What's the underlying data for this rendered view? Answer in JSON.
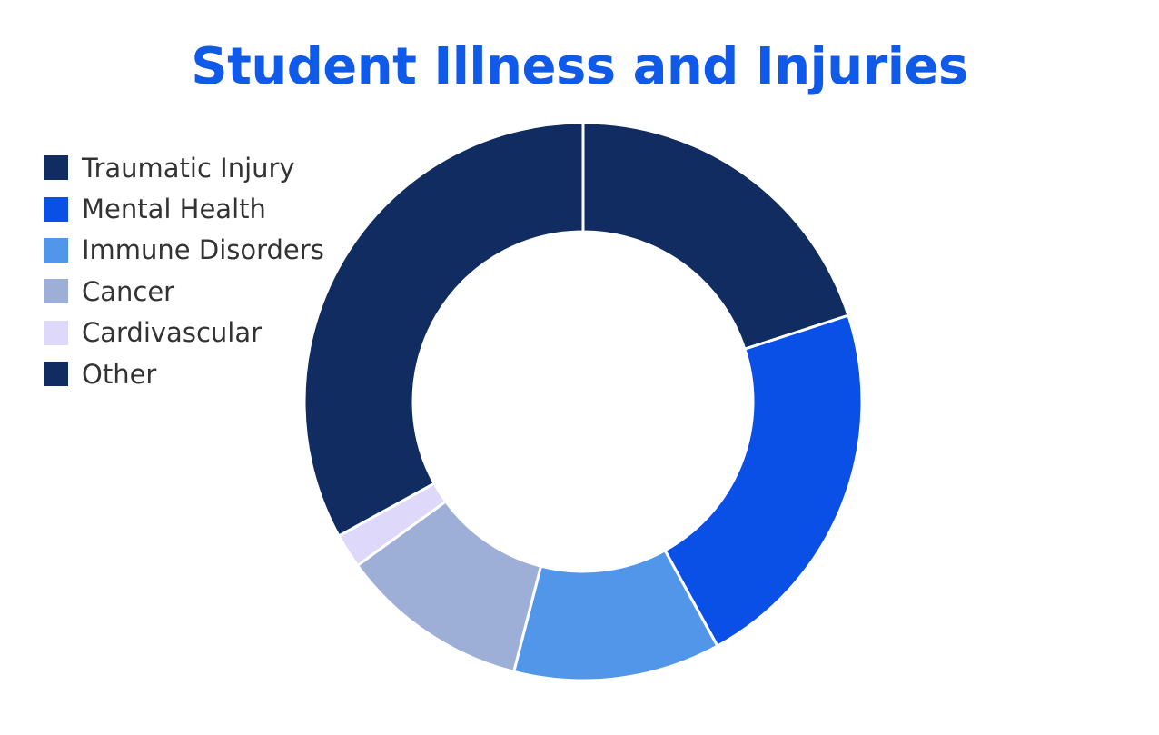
{
  "colors": {
    "title": "#0f5ae8"
  },
  "chart_data": {
    "type": "pie",
    "variant": "donut",
    "title": "Student Illness and Injuries",
    "legend_position": "top-left",
    "categories": [
      "Traumatic Injury",
      "Mental Health",
      "Immune Disorders",
      "Cancer",
      "Cardivascular",
      "Other"
    ],
    "values": [
      20,
      22,
      12,
      11,
      2,
      33
    ],
    "colors": [
      "#102c61",
      "#0a4fe6",
      "#5296ea",
      "#9eafd7",
      "#ded9fa",
      "#102c61"
    ]
  }
}
